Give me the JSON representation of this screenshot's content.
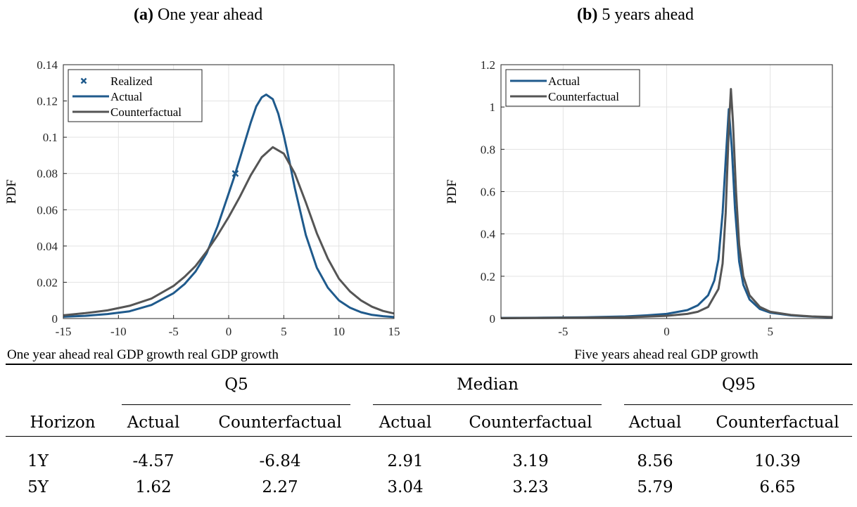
{
  "panels": {
    "a": {
      "letter": "(a)",
      "title": "One year ahead"
    },
    "b": {
      "letter": "(b)",
      "title": "5 years ahead"
    }
  },
  "chart_data": [
    {
      "type": "line",
      "xlabel": "One year ahead real GDP growth real GDP growth",
      "ylabel": "PDF",
      "xlim": [
        -15,
        15
      ],
      "ylim": [
        0,
        0.14
      ],
      "xticks": [
        "-15",
        "-10",
        "-5",
        "0",
        "5",
        "10",
        "15"
      ],
      "yticks": [
        "0",
        "0.02",
        "0.04",
        "0.06",
        "0.08",
        "0.1",
        "0.12",
        "0.14"
      ],
      "grid": true,
      "legend": "top-left",
      "legend_entries": [
        "Realized",
        "Actual",
        "Counterfactual"
      ],
      "realized_point": {
        "x": 0.6,
        "y": 0.08
      },
      "series": [
        {
          "name": "Actual",
          "color": "#1f5a8c",
          "x": [
            -15,
            -13,
            -11,
            -9,
            -7,
            -5,
            -4,
            -3,
            -2,
            -1,
            0,
            0.5,
            1,
            1.5,
            2,
            2.5,
            3,
            3.4,
            4,
            4.5,
            5,
            5.5,
            6,
            7,
            8,
            9,
            10,
            11,
            12,
            13,
            14,
            15
          ],
          "y": [
            0.001,
            0.0015,
            0.0025,
            0.004,
            0.0075,
            0.014,
            0.019,
            0.026,
            0.036,
            0.051,
            0.069,
            0.078,
            0.088,
            0.098,
            0.108,
            0.117,
            0.122,
            0.1235,
            0.121,
            0.113,
            0.101,
            0.087,
            0.072,
            0.046,
            0.028,
            0.017,
            0.01,
            0.006,
            0.0035,
            0.002,
            0.0013,
            0.0008
          ]
        },
        {
          "name": "Counterfactual",
          "color": "#555555",
          "x": [
            -15,
            -13,
            -11,
            -9,
            -7,
            -5,
            -4,
            -3,
            -2,
            -1,
            0,
            1,
            2,
            3,
            4,
            5,
            6,
            7,
            8,
            9,
            10,
            11,
            12,
            13,
            14,
            15
          ],
          "y": [
            0.0018,
            0.003,
            0.0045,
            0.007,
            0.011,
            0.018,
            0.023,
            0.029,
            0.037,
            0.046,
            0.056,
            0.067,
            0.079,
            0.089,
            0.0945,
            0.091,
            0.08,
            0.064,
            0.047,
            0.033,
            0.022,
            0.015,
            0.01,
            0.0065,
            0.0042,
            0.0028
          ]
        }
      ]
    },
    {
      "type": "line",
      "xlabel": "Five years ahead real GDP growth",
      "ylabel": "PDF",
      "xlim": [
        -8,
        8
      ],
      "ylim": [
        0,
        1.2
      ],
      "xticks": [
        "-5",
        "0",
        "5"
      ],
      "yticks": [
        "0",
        "0.2",
        "0.4",
        "0.6",
        "0.8",
        "1",
        "1.2"
      ],
      "grid": true,
      "legend": "top-left",
      "legend_entries": [
        "Actual",
        "Counterfactual"
      ],
      "series": [
        {
          "name": "Actual",
          "color": "#1f5a8c",
          "x": [
            -8,
            -6,
            -4,
            -2,
            -1,
            0,
            1,
            1.5,
            2,
            2.3,
            2.5,
            2.7,
            2.85,
            3.0,
            3.15,
            3.3,
            3.5,
            3.7,
            4,
            4.5,
            5,
            6,
            7,
            8
          ],
          "y": [
            0.003,
            0.004,
            0.006,
            0.01,
            0.015,
            0.022,
            0.04,
            0.062,
            0.11,
            0.18,
            0.28,
            0.5,
            0.75,
            0.99,
            0.8,
            0.52,
            0.27,
            0.16,
            0.09,
            0.045,
            0.028,
            0.015,
            0.009,
            0.006
          ]
        },
        {
          "name": "Counterfactual",
          "color": "#555555",
          "x": [
            -8,
            -6,
            -4,
            -2,
            -1,
            0,
            1,
            1.5,
            2,
            2.5,
            2.7,
            2.85,
            3.0,
            3.1,
            3.2,
            3.35,
            3.5,
            3.7,
            4,
            4.5,
            5,
            6,
            7,
            8
          ],
          "y": [
            0.002,
            0.003,
            0.004,
            0.006,
            0.009,
            0.013,
            0.022,
            0.032,
            0.055,
            0.14,
            0.26,
            0.5,
            0.9,
            1.085,
            0.93,
            0.6,
            0.35,
            0.2,
            0.11,
            0.055,
            0.032,
            0.017,
            0.01,
            0.007
          ]
        }
      ]
    }
  ],
  "table": {
    "groups": [
      "Q5",
      "Median",
      "Q95"
    ],
    "columns": [
      "Horizon",
      "Actual",
      "Counterfactual",
      "Actual",
      "Counterfactual",
      "Actual",
      "Counterfactual"
    ],
    "rows": [
      [
        "1Y",
        "-4.57",
        "-6.84",
        "2.91",
        "3.19",
        "8.56",
        "10.39"
      ],
      [
        "5Y",
        "1.62",
        "2.27",
        "3.04",
        "3.23",
        "5.79",
        "6.65"
      ]
    ]
  }
}
